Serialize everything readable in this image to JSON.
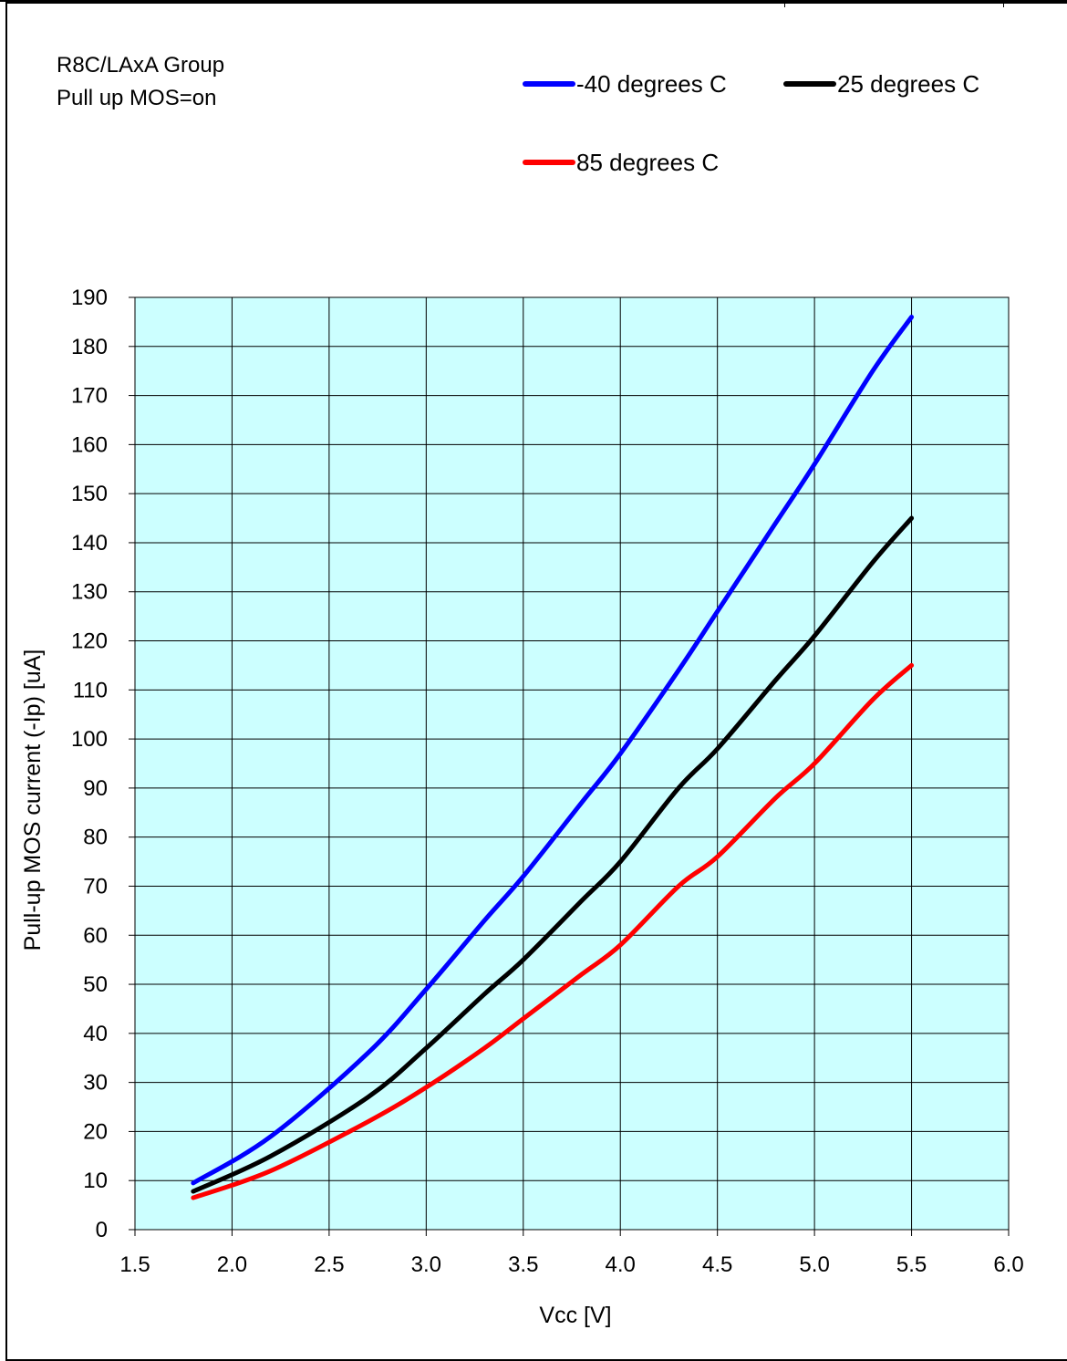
{
  "annotations": {
    "line1": "R8C/LAxA  Group",
    "line2": "Pull up MOS=on"
  },
  "chart_data": {
    "type": "line",
    "xlabel": "Vcc [V]",
    "ylabel": "Pull-up MOS current (-Ip) [uA]",
    "xlim": [
      1.5,
      6.0
    ],
    "ylim": [
      0,
      190
    ],
    "xticks": [
      "1.5",
      "2.0",
      "2.5",
      "3.0",
      "3.5",
      "4.0",
      "4.5",
      "5.0",
      "5.5",
      "6.0"
    ],
    "yticks": [
      "0",
      "10",
      "20",
      "30",
      "40",
      "50",
      "60",
      "70",
      "80",
      "90",
      "100",
      "110",
      "120",
      "130",
      "140",
      "150",
      "160",
      "170",
      "180",
      "190"
    ],
    "grid": true,
    "plot_background": "#ccffff",
    "legend_position": "top-right",
    "x": [
      1.8,
      2.2,
      2.7,
      3.0,
      3.3,
      3.5,
      3.8,
      4.0,
      4.3,
      4.5,
      4.8,
      5.0,
      5.3,
      5.5
    ],
    "series": [
      {
        "name": "-40 degrees C",
        "color": "#0000ff",
        "values": [
          9.5,
          19,
          36,
          49,
          63,
          72,
          87,
          97,
          114,
          126,
          144,
          156,
          175,
          186
        ]
      },
      {
        "name": "25 degrees C",
        "color": "#000000",
        "values": [
          7.8,
          15,
          27,
          37,
          48,
          55,
          67,
          75,
          90,
          98,
          112,
          121,
          136,
          145
        ]
      },
      {
        "name": "85 degrees C",
        "color": "#ff0000",
        "values": [
          6.5,
          12,
          22,
          29,
          37,
          43,
          52,
          58,
          70,
          76,
          88,
          95,
          108,
          115
        ]
      }
    ]
  }
}
